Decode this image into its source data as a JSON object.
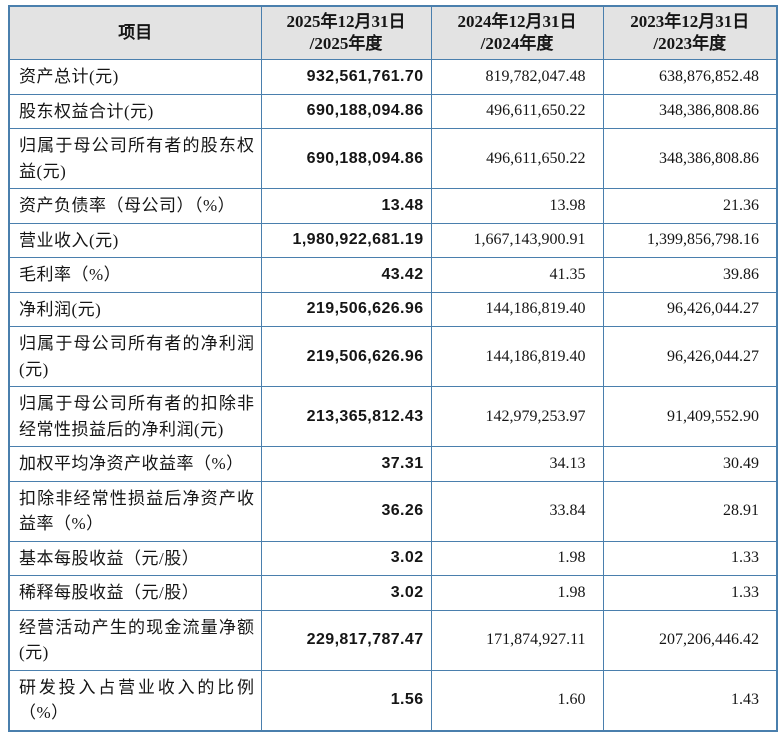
{
  "colors": {
    "border": "#4a7fad",
    "header_bg": "#e3e3e3",
    "text": "#151515",
    "body_bg": "#ffffff"
  },
  "table": {
    "header": {
      "item_label": "项目",
      "periods": [
        {
          "line1": "2025年12月31日",
          "line2": "/2025年度"
        },
        {
          "line1": "2024年12月31日",
          "line2": "/2024年度"
        },
        {
          "line1": "2023年12月31日",
          "line2": "/2023年度"
        }
      ]
    },
    "rows": [
      {
        "item": "资产总计(元)",
        "y2025": "932,561,761.70",
        "y2024": "819,782,047.48",
        "y2023": "638,876,852.48"
      },
      {
        "item": "股东权益合计(元)",
        "y2025": "690,188,094.86",
        "y2024": "496,611,650.22",
        "y2023": "348,386,808.86"
      },
      {
        "item": "归属于母公司所有者的股东权益(元)",
        "y2025": "690,188,094.86",
        "y2024": "496,611,650.22",
        "y2023": "348,386,808.86"
      },
      {
        "item": "资产负债率（母公司）（%）",
        "y2025": "13.48",
        "y2024": "13.98",
        "y2023": "21.36"
      },
      {
        "item": "营业收入(元)",
        "y2025": "1,980,922,681.19",
        "y2024": "1,667,143,900.91",
        "y2023": "1,399,856,798.16"
      },
      {
        "item": "毛利率（%）",
        "y2025": "43.42",
        "y2024": "41.35",
        "y2023": "39.86"
      },
      {
        "item": "净利润(元)",
        "y2025": "219,506,626.96",
        "y2024": "144,186,819.40",
        "y2023": "96,426,044.27"
      },
      {
        "item": "归属于母公司所有者的净利润(元)",
        "y2025": "219,506,626.96",
        "y2024": "144,186,819.40",
        "y2023": "96,426,044.27"
      },
      {
        "item": "归属于母公司所有者的扣除非经常性损益后的净利润(元)",
        "y2025": "213,365,812.43",
        "y2024": "142,979,253.97",
        "y2023": "91,409,552.90"
      },
      {
        "item": "加权平均净资产收益率（%）",
        "y2025": "37.31",
        "y2024": "34.13",
        "y2023": "30.49"
      },
      {
        "item": "扣除非经常性损益后净资产收益率（%）",
        "y2025": "36.26",
        "y2024": "33.84",
        "y2023": "28.91"
      },
      {
        "item": "基本每股收益（元/股）",
        "y2025": "3.02",
        "y2024": "1.98",
        "y2023": "1.33"
      },
      {
        "item": "稀释每股收益（元/股）",
        "y2025": "3.02",
        "y2024": "1.98",
        "y2023": "1.33"
      },
      {
        "item": "经营活动产生的现金流量净额(元)",
        "y2025": "229,817,787.47",
        "y2024": "171,874,927.11",
        "y2023": "207,206,446.42"
      },
      {
        "item": "研发投入占营业收入的比例（%）",
        "y2025": "1.56",
        "y2024": "1.60",
        "y2023": "1.43"
      }
    ]
  }
}
